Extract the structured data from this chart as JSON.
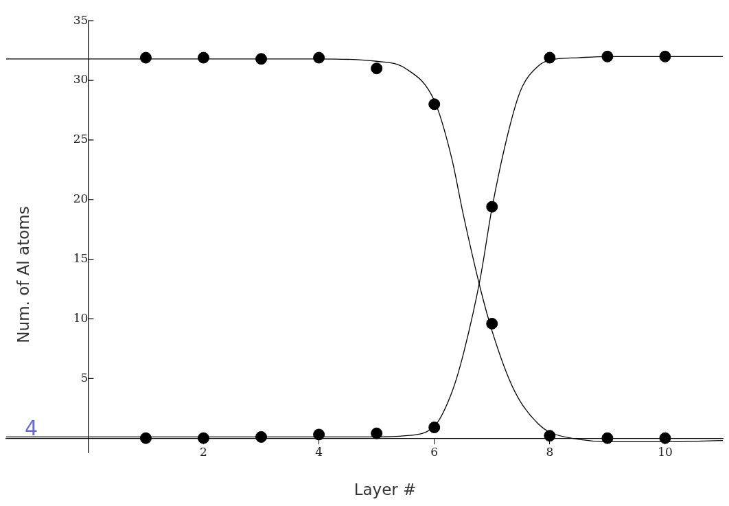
{
  "chart_data": {
    "type": "scatter",
    "xlabel": "Layer #",
    "ylabel": "Num. of Al atoms",
    "annotations": [
      "4"
    ],
    "xlim": [
      -1.42,
      11
    ],
    "ylim": [
      -1.2,
      35
    ],
    "xticks": [
      2,
      4,
      6,
      8,
      10
    ],
    "yticks": [
      5,
      10,
      15,
      20,
      25,
      30,
      35
    ],
    "grid": false,
    "legend": false,
    "series": [
      {
        "marker": "circle",
        "color": "#000000",
        "x": [
          1,
          2,
          3,
          4,
          5,
          6,
          7,
          8,
          9,
          10
        ],
        "values": [
          31.9,
          31.9,
          31.8,
          31.9,
          31.0,
          28.0,
          9.6,
          0.2,
          0.0,
          0.0
        ]
      },
      {
        "marker": "circle",
        "color": "#000000",
        "x": [
          1,
          2,
          3,
          4,
          5,
          6,
          7,
          8,
          9,
          10
        ],
        "values": [
          0.0,
          0.0,
          0.1,
          0.3,
          0.4,
          0.9,
          19.4,
          31.9,
          32.0,
          32.0
        ]
      },
      {
        "type": "line",
        "marker": "none",
        "color": "#000000",
        "x": [
          -1.42,
          0,
          2,
          4,
          5,
          5.5,
          6,
          6.3,
          6.5,
          6.8,
          7,
          7.3,
          7.5,
          7.8,
          8,
          8.5,
          9,
          10,
          11
        ],
        "values": [
          31.8,
          31.8,
          31.8,
          31.8,
          31.6,
          31.0,
          28.3,
          23.5,
          18.8,
          12.5,
          9.0,
          4.9,
          3.0,
          1.2,
          0.5,
          -0.1,
          -0.3,
          -0.3,
          -0.2
        ]
      },
      {
        "type": "line",
        "marker": "none",
        "color": "#000000",
        "x": [
          -1.42,
          0,
          2,
          4,
          5,
          5.5,
          6,
          6.3,
          6.5,
          6.8,
          7,
          7.3,
          7.5,
          7.8,
          8,
          8.5,
          9,
          10,
          11
        ],
        "values": [
          0.1,
          0.1,
          0.1,
          0.1,
          0.1,
          0.2,
          1.0,
          3.8,
          7.0,
          13.5,
          19.3,
          26.0,
          29.2,
          31.2,
          31.7,
          31.9,
          32.0,
          32.0,
          32.0
        ]
      }
    ]
  }
}
